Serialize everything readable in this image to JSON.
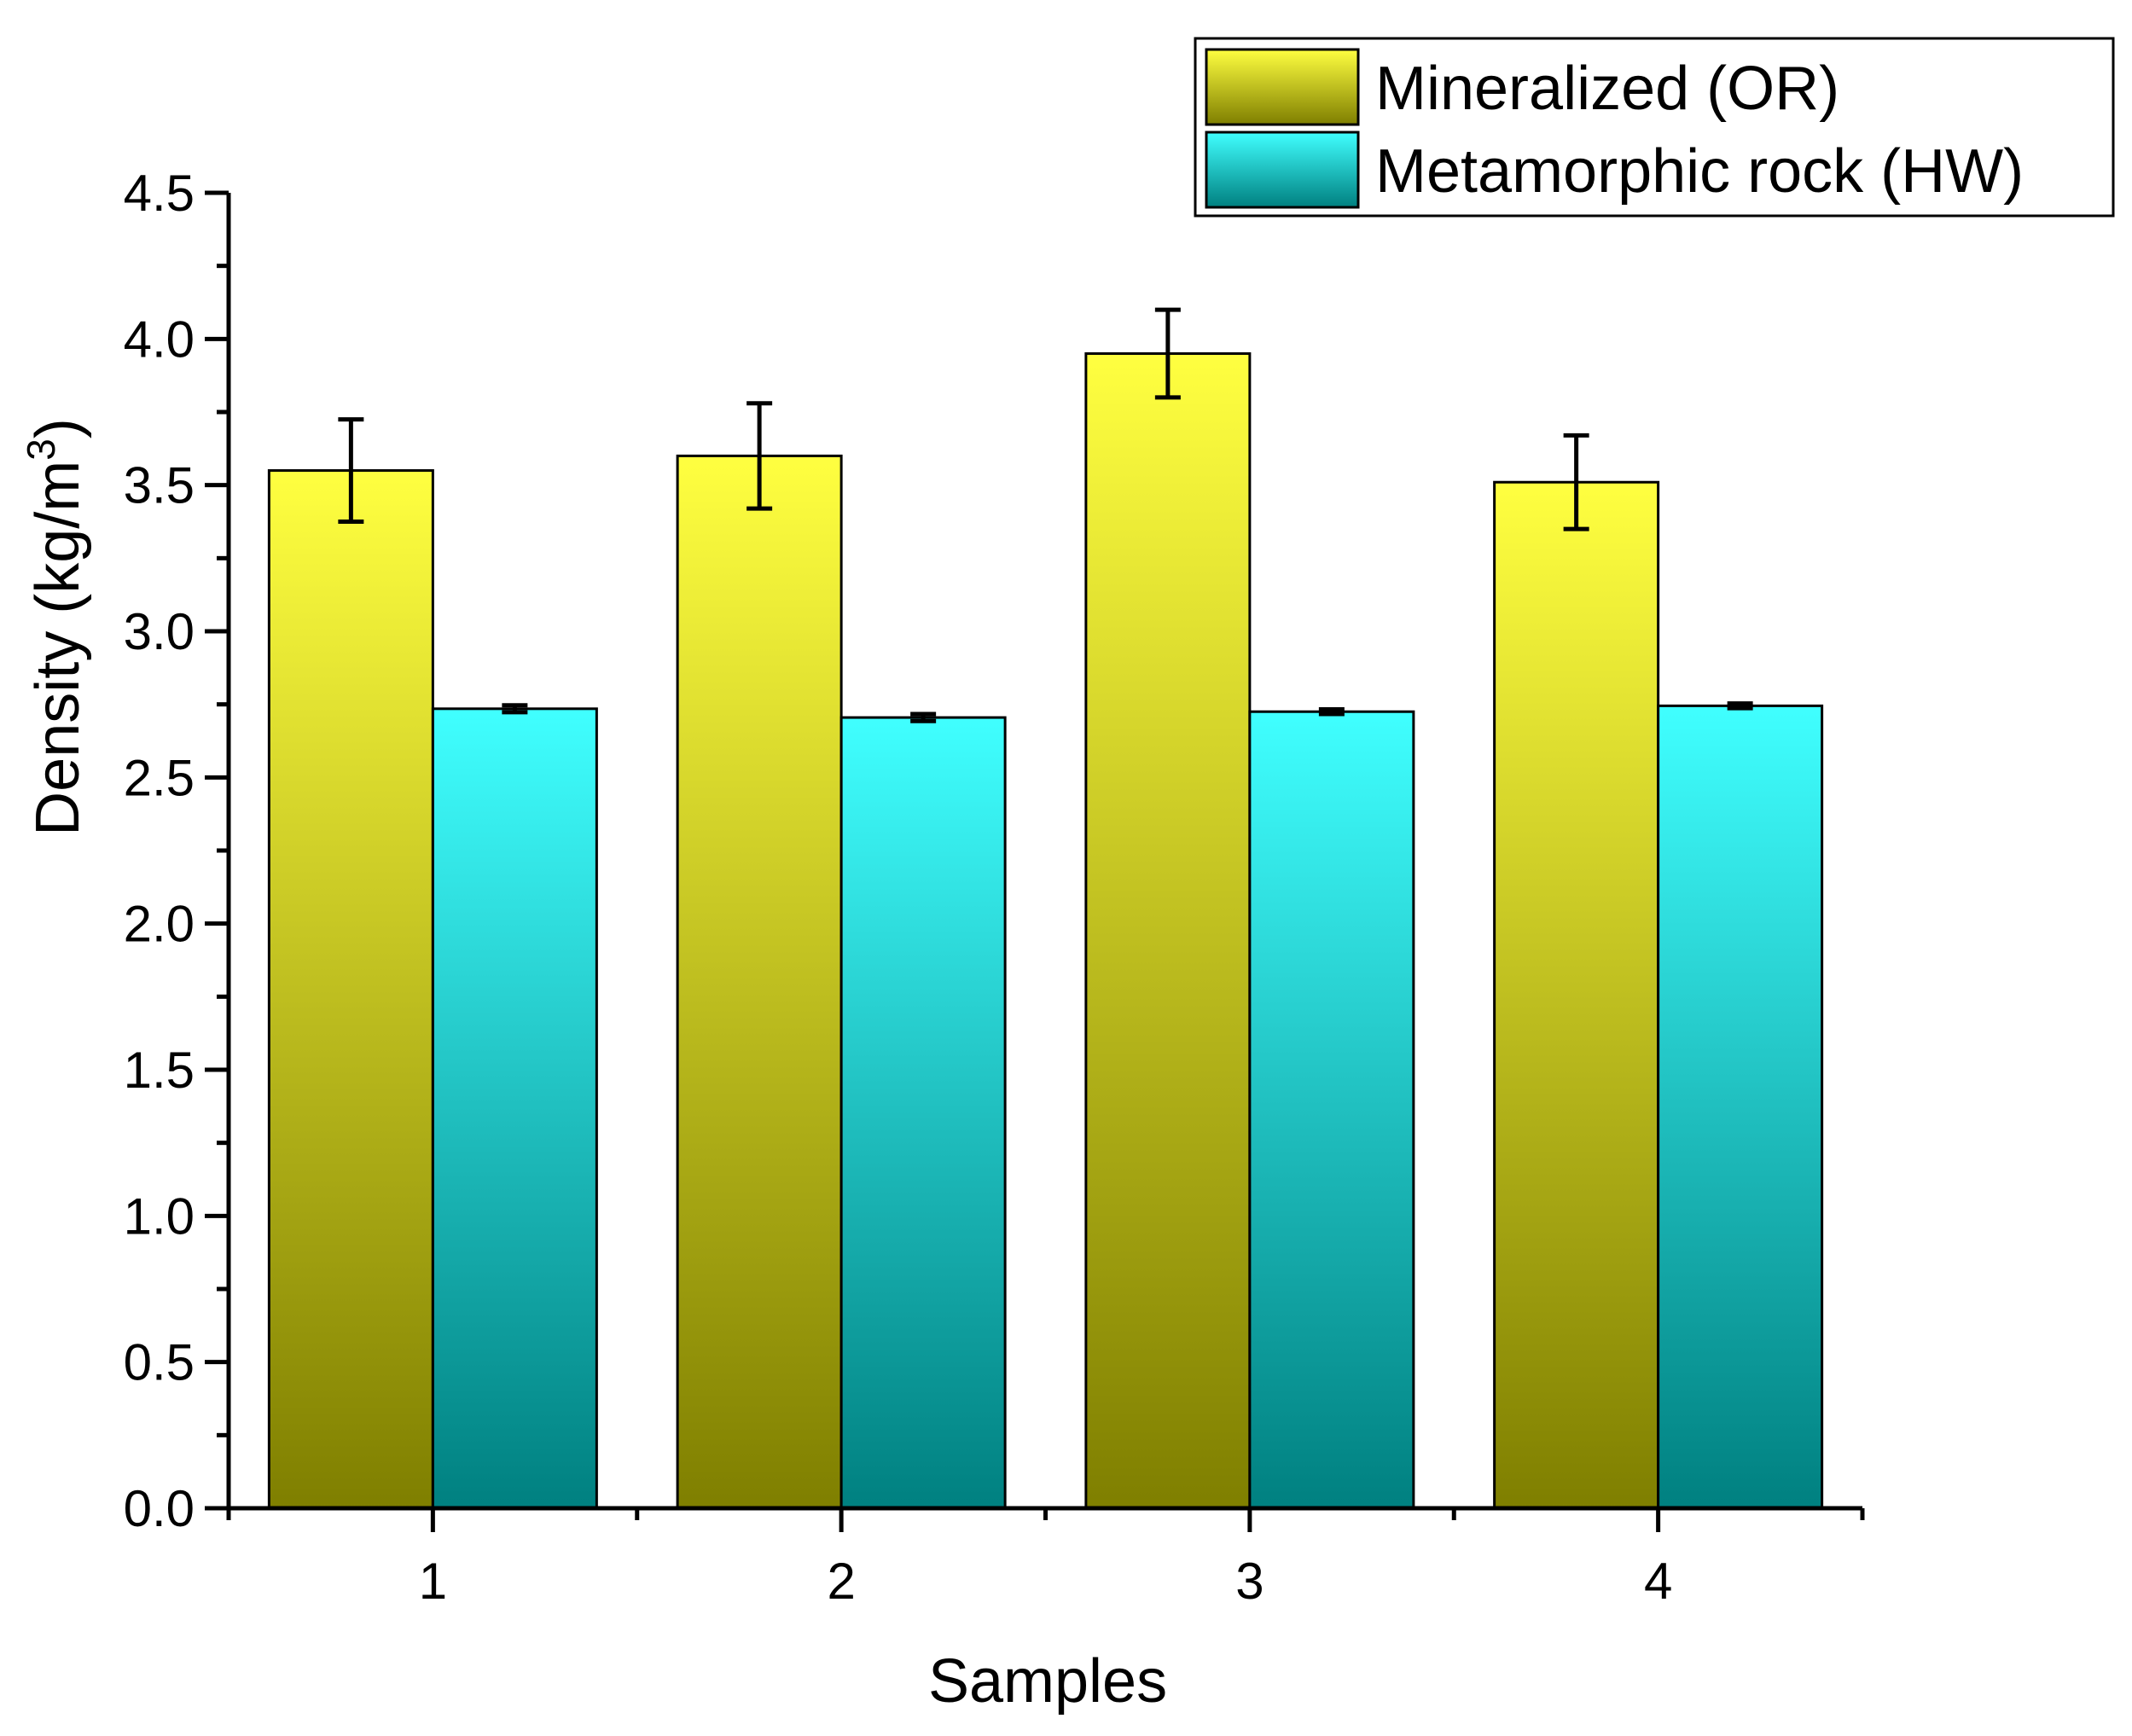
{
  "chart_data": {
    "type": "bar",
    "categories": [
      "1",
      "2",
      "3",
      "4"
    ],
    "series": [
      {
        "name": "Mineralized (OR)",
        "values": [
          3.55,
          3.6,
          3.95,
          3.51
        ],
        "errors": [
          0.175,
          0.18,
          0.15,
          0.16
        ],
        "color_top": "#ffff40",
        "color_bottom": "#7f7f00"
      },
      {
        "name": "Metamorphic rock (HW)",
        "values": [
          2.735,
          2.705,
          2.725,
          2.745
        ],
        "errors": [
          0.012,
          0.012,
          0.008,
          0.008
        ],
        "color_top": "#40ffff",
        "color_bottom": "#008080"
      }
    ],
    "title": "",
    "xlabel": "Samples",
    "ylabel_main": "Density (kg/m",
    "ylabel_sup": "3",
    "ylabel_close": ")",
    "ylim": [
      0,
      4.5
    ],
    "yticks": [
      "0.0",
      "0.5",
      "1.0",
      "1.5",
      "2.0",
      "2.5",
      "3.0",
      "3.5",
      "4.0",
      "4.5"
    ],
    "grid": false,
    "legend_position": "top-right"
  }
}
